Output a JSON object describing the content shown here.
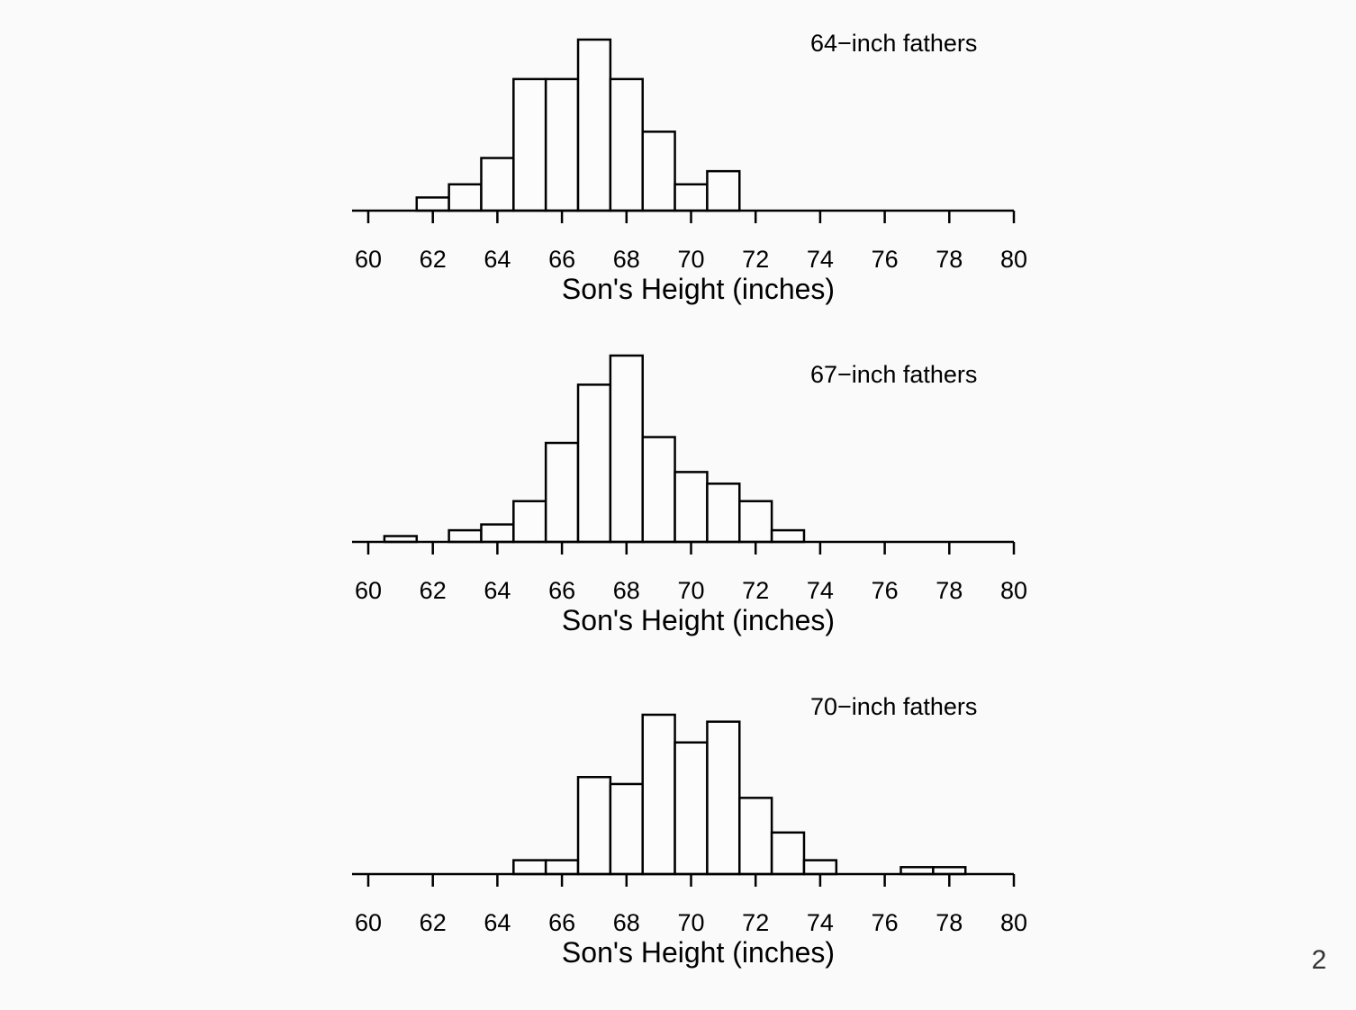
{
  "chart_data": [
    {
      "type": "bar",
      "annotation": "64−inch fathers",
      "xlabel": "Son's Height (inches)",
      "ylabel": "",
      "xlim": [
        60,
        80
      ],
      "xticks": [
        "60",
        "62",
        "64",
        "66",
        "68",
        "70",
        "72",
        "74",
        "76",
        "78",
        "80"
      ],
      "bin_width": 1,
      "bin_starts": [
        60.5,
        61.5,
        62.5,
        63.5,
        64.5,
        65.5,
        66.5,
        67.5,
        68.5,
        69.5,
        70.5,
        71.5
      ],
      "values": [
        0,
        1,
        2,
        4,
        10,
        10,
        13,
        10,
        6,
        2,
        3,
        0
      ],
      "ylim": [
        0,
        13
      ]
    },
    {
      "type": "bar",
      "annotation": "67−inch fathers",
      "xlabel": "Son's Height (inches)",
      "ylabel": "",
      "xlim": [
        60,
        80
      ],
      "xticks": [
        "60",
        "62",
        "64",
        "66",
        "68",
        "70",
        "72",
        "74",
        "76",
        "78",
        "80"
      ],
      "bin_width": 1,
      "bin_starts": [
        60.5,
        61.5,
        62.5,
        63.5,
        64.5,
        65.5,
        66.5,
        67.5,
        68.5,
        69.5,
        70.5,
        71.5,
        72.5,
        73.5
      ],
      "values": [
        1,
        0,
        2,
        3,
        7,
        17,
        27,
        32,
        18,
        12,
        10,
        7,
        2,
        0
      ],
      "ylim": [
        0,
        32
      ]
    },
    {
      "type": "bar",
      "annotation": "70−inch fathers",
      "xlabel": "Son's Height (inches)",
      "ylabel": "",
      "xlim": [
        60,
        80
      ],
      "xticks": [
        "60",
        "62",
        "64",
        "66",
        "68",
        "70",
        "72",
        "74",
        "76",
        "78",
        "80"
      ],
      "bin_width": 1,
      "bin_starts": [
        64.5,
        65.5,
        66.5,
        67.5,
        68.5,
        69.5,
        70.5,
        71.5,
        72.5,
        73.5,
        74.5,
        75.5,
        76.5,
        77.5
      ],
      "values": [
        2,
        2,
        14,
        13,
        23,
        19,
        22,
        11,
        6,
        2,
        0,
        0,
        1,
        1
      ],
      "ylim": [
        0,
        23
      ]
    }
  ],
  "page_number": "2"
}
